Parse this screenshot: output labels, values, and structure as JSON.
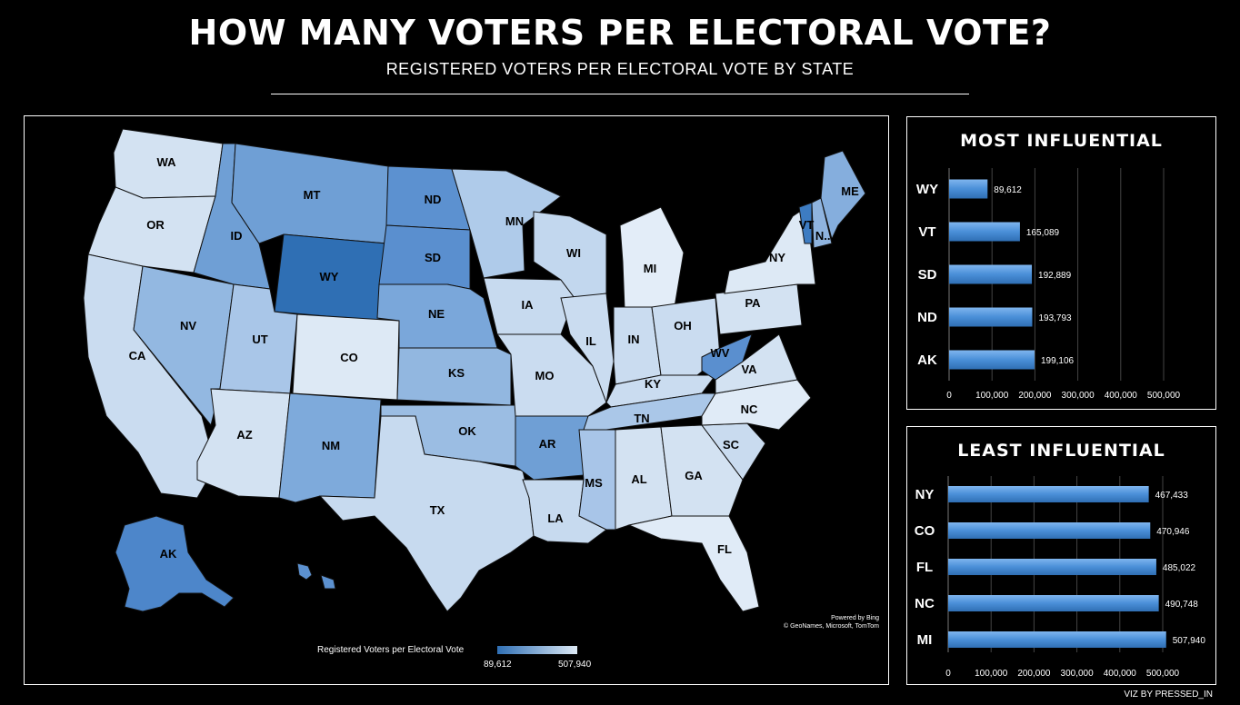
{
  "header": {
    "title": "HOW MANY VOTERS PER ELECTORAL VOTE?",
    "subtitle": "REGISTERED VOTERS PER ELECTORAL VOTE BY STATE"
  },
  "map": {
    "attribution_line1": "Powered by Bing",
    "attribution_line2": "© GeoNames, Microsoft, TomTom",
    "legend_title": "Registered Voters per Electoral Vote",
    "legend_min": "89,612",
    "legend_max": "507,940",
    "colors": {
      "low": "#2f6fb4",
      "high": "#dde9f5",
      "border": "#0a0a0a"
    },
    "states": [
      "WA",
      "OR",
      "CA",
      "NV",
      "ID",
      "MT",
      "WY",
      "UT",
      "AZ",
      "CO",
      "NM",
      "ND",
      "SD",
      "NE",
      "KS",
      "OK",
      "TX",
      "MN",
      "IA",
      "MO",
      "AR",
      "LA",
      "WI",
      "IL",
      "MI",
      "IN",
      "OH",
      "KY",
      "TN",
      "MS",
      "AL",
      "GA",
      "FL",
      "SC",
      "NC",
      "VA",
      "WV",
      "PA",
      "NY",
      "VT",
      "NH",
      "ME",
      "AK"
    ]
  },
  "footer": {
    "credit": "VIZ BY PRESSED_IN"
  },
  "chart_data": [
    {
      "type": "bar",
      "title": "MOST INFLUENTIAL",
      "categories": [
        "WY",
        "VT",
        "SD",
        "ND",
        "AK"
      ],
      "values": [
        89612,
        165089,
        192889,
        193793,
        199106
      ],
      "value_labels": [
        "89,612",
        "165,089",
        "192,889",
        "193,793",
        "199,106"
      ],
      "orientation": "horizontal",
      "xlim": [
        0,
        500000
      ],
      "xticks": [
        "0",
        "100,000",
        "200,000",
        "300,000",
        "400,000",
        "500,000"
      ],
      "grid": true,
      "bar_color": "#4a8fd8"
    },
    {
      "type": "bar",
      "title": "LEAST INFLUENTIAL",
      "categories": [
        "NY",
        "CO",
        "FL",
        "NC",
        "MI"
      ],
      "values": [
        467433,
        470946,
        485022,
        490748,
        507940
      ],
      "value_labels": [
        "467,433",
        "470,946",
        "485,022",
        "490,748",
        "507,940"
      ],
      "orientation": "horizontal",
      "xlim": [
        0,
        500000
      ],
      "xticks": [
        "0",
        "100,000",
        "200,000",
        "300,000",
        "400,000",
        "500,000"
      ],
      "grid": true,
      "bar_color": "#4a8fd8"
    }
  ]
}
